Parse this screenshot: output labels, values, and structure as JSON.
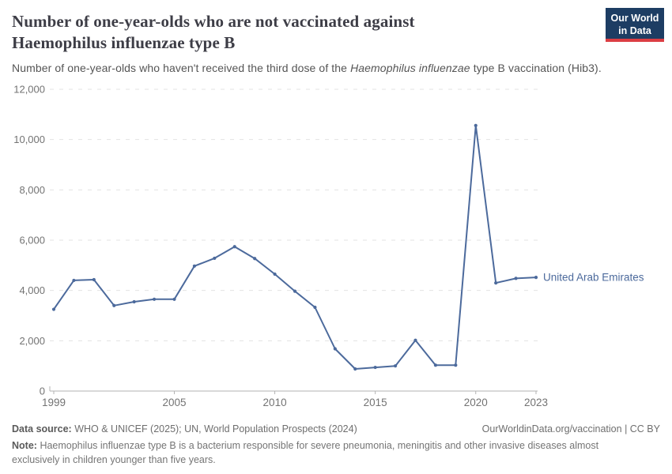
{
  "header": {
    "title": "Number of one-year-olds who are not vaccinated against Haemophilus influenzae type B",
    "subtitle_prefix": "Number of one-year-olds who haven't received the third dose of the ",
    "subtitle_italic": "Haemophilus influenzae",
    "subtitle_suffix": " type B vaccination (Hib3).",
    "logo_line1": "Our World",
    "logo_line2": "in Data"
  },
  "colors": {
    "series-blue": "#4c6a9c",
    "brand-navy": "#1d3d63",
    "brand-red": "#dc3d43"
  },
  "chart_data": {
    "type": "line",
    "title": "Number of one-year-olds who are not vaccinated against Haemophilus influenzae type B",
    "x": [
      1999,
      2000,
      2001,
      2002,
      2003,
      2004,
      2005,
      2006,
      2007,
      2008,
      2009,
      2010,
      2011,
      2012,
      2013,
      2014,
      2015,
      2016,
      2017,
      2018,
      2019,
      2020,
      2021,
      2022,
      2023
    ],
    "series": [
      {
        "name": "United Arab Emirates",
        "color": "#4c6a9c",
        "values": [
          3250,
          4400,
          4430,
          3400,
          3550,
          3650,
          3650,
          4970,
          5280,
          5740,
          5270,
          4650,
          3970,
          3330,
          1680,
          880,
          940,
          1000,
          2020,
          1030,
          1030,
          10560,
          4300,
          4480,
          4520
        ]
      }
    ],
    "xlabel": "",
    "ylabel": "",
    "ylim": [
      0,
      12000
    ],
    "yticks": [
      0,
      2000,
      4000,
      6000,
      8000,
      10000,
      12000
    ],
    "ytick_labels": [
      "0",
      "2,000",
      "4,000",
      "6,000",
      "8,000",
      "10,000",
      "12,000"
    ],
    "xticks": [
      1999,
      2005,
      2010,
      2015,
      2020,
      2023
    ],
    "xtick_labels": [
      "1999",
      "2005",
      "2010",
      "2015",
      "2020",
      "2023"
    ],
    "grid": "horizontal-dashed",
    "legend_position": "end-of-line-label"
  },
  "footer": {
    "datasource_label": "Data source:",
    "datasource_text": "WHO & UNICEF (2025); UN, World Population Prospects (2024)",
    "link": "OurWorldinData.org/vaccination | CC BY",
    "note_label": "Note:",
    "note_text": "Haemophilus influenzae type B is a bacterium responsible for severe pneumonia, meningitis and other invasive diseases almost exclusively in children younger than five years."
  }
}
